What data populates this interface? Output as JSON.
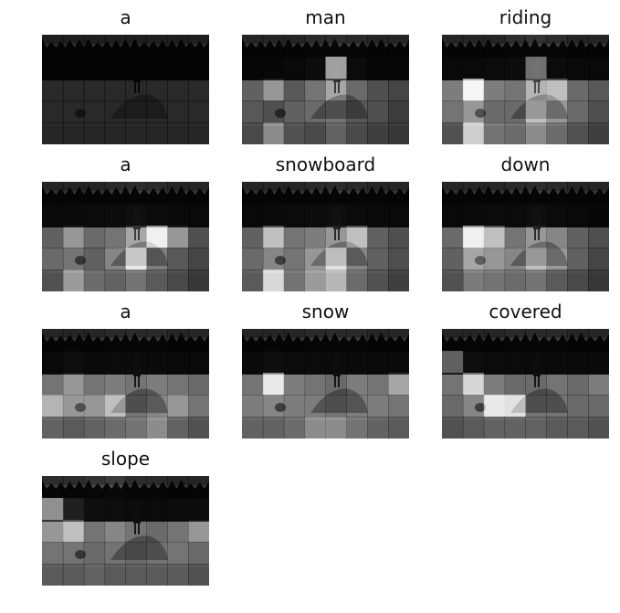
{
  "panels": [
    {
      "word": "a",
      "attention": [
        [
          0,
          0,
          0,
          0,
          0,
          0,
          0,
          0
        ],
        [
          0,
          0,
          0,
          0,
          0,
          0,
          0,
          0
        ],
        [
          0,
          0,
          0,
          0,
          0,
          0,
          0,
          0
        ],
        [
          0,
          0,
          0,
          0,
          0,
          0,
          0,
          0
        ],
        [
          0,
          0,
          0,
          0,
          0,
          0,
          0,
          0
        ]
      ]
    },
    {
      "word": "man",
      "attention": [
        [
          0.05,
          0.05,
          0.05,
          0.08,
          0.1,
          0.08,
          0.05,
          0.05
        ],
        [
          0.1,
          0.15,
          0.2,
          0.35,
          0.95,
          0.3,
          0.15,
          0.1
        ],
        [
          0.3,
          0.55,
          0.25,
          0.4,
          0.6,
          0.35,
          0.2,
          0.15
        ],
        [
          0.25,
          0.2,
          0.3,
          0.35,
          0.4,
          0.25,
          0.2,
          0.1
        ],
        [
          0.2,
          0.55,
          0.25,
          0.2,
          0.35,
          0.2,
          0.15,
          0.1
        ]
      ]
    },
    {
      "word": "riding",
      "attention": [
        [
          0.05,
          0.05,
          0.05,
          0.1,
          0.15,
          0.1,
          0.05,
          0.05
        ],
        [
          0.2,
          0.2,
          0.3,
          0.35,
          0.8,
          0.3,
          0.25,
          0.2
        ],
        [
          0.45,
          1.0,
          0.45,
          0.4,
          0.65,
          0.7,
          0.35,
          0.25
        ],
        [
          0.4,
          0.55,
          0.35,
          0.35,
          0.7,
          0.55,
          0.35,
          0.2
        ],
        [
          0.25,
          0.8,
          0.45,
          0.4,
          0.55,
          0.4,
          0.25,
          0.15
        ]
      ]
    },
    {
      "word": "a",
      "attention": [
        [
          0.05,
          0.05,
          0.05,
          0.08,
          0.1,
          0.08,
          0.05,
          0.05
        ],
        [
          0.25,
          0.25,
          0.3,
          0.35,
          0.5,
          0.35,
          0.25,
          0.2
        ],
        [
          0.3,
          0.55,
          0.35,
          0.4,
          0.6,
          0.95,
          0.55,
          0.2
        ],
        [
          0.35,
          0.4,
          0.3,
          0.5,
          0.9,
          0.45,
          0.25,
          0.15
        ],
        [
          0.25,
          0.6,
          0.4,
          0.35,
          0.45,
          0.3,
          0.2,
          0.1
        ]
      ]
    },
    {
      "word": "snowboard",
      "attention": [
        [
          0.05,
          0.05,
          0.05,
          0.08,
          0.1,
          0.08,
          0.05,
          0.05
        ],
        [
          0.2,
          0.25,
          0.3,
          0.35,
          0.45,
          0.3,
          0.25,
          0.2
        ],
        [
          0.3,
          0.7,
          0.4,
          0.45,
          0.55,
          0.7,
          0.3,
          0.2
        ],
        [
          0.35,
          0.5,
          0.4,
          0.55,
          0.85,
          0.5,
          0.3,
          0.2
        ],
        [
          0.3,
          0.85,
          0.45,
          0.6,
          0.7,
          0.4,
          0.25,
          0.15
        ]
      ]
    },
    {
      "word": "down",
      "attention": [
        [
          0.05,
          0.05,
          0.05,
          0.08,
          0.1,
          0.08,
          0.05,
          0.05
        ],
        [
          0.2,
          0.25,
          0.3,
          0.3,
          0.45,
          0.3,
          0.2,
          0.15
        ],
        [
          0.35,
          0.95,
          0.7,
          0.4,
          0.55,
          0.5,
          0.3,
          0.2
        ],
        [
          0.3,
          0.6,
          0.55,
          0.5,
          0.7,
          0.55,
          0.3,
          0.15
        ],
        [
          0.25,
          0.5,
          0.45,
          0.4,
          0.45,
          0.3,
          0.2,
          0.1
        ]
      ]
    },
    {
      "word": "a",
      "attention": [
        [
          0.05,
          0.05,
          0.05,
          0.08,
          0.08,
          0.08,
          0.05,
          0.05
        ],
        [
          0.2,
          0.45,
          0.25,
          0.3,
          0.3,
          0.25,
          0.25,
          0.2
        ],
        [
          0.4,
          0.55,
          0.4,
          0.45,
          0.4,
          0.45,
          0.4,
          0.35
        ],
        [
          0.65,
          0.55,
          0.55,
          0.7,
          0.4,
          0.5,
          0.55,
          0.4
        ],
        [
          0.35,
          0.3,
          0.35,
          0.4,
          0.45,
          0.55,
          0.35,
          0.25
        ]
      ]
    },
    {
      "word": "snow",
      "attention": [
        [
          0.05,
          0.05,
          0.05,
          0.08,
          0.08,
          0.08,
          0.05,
          0.05
        ],
        [
          0.25,
          0.45,
          0.3,
          0.3,
          0.3,
          0.25,
          0.25,
          0.25
        ],
        [
          0.4,
          0.9,
          0.45,
          0.4,
          0.35,
          0.45,
          0.4,
          0.6
        ],
        [
          0.45,
          0.5,
          0.45,
          0.45,
          0.4,
          0.45,
          0.45,
          0.4
        ],
        [
          0.35,
          0.35,
          0.4,
          0.55,
          0.55,
          0.45,
          0.35,
          0.3
        ]
      ]
    },
    {
      "word": "covered",
      "attention": [
        [
          0.05,
          0.05,
          0.05,
          0.08,
          0.08,
          0.08,
          0.05,
          0.05
        ],
        [
          0.75,
          0.4,
          0.3,
          0.3,
          0.25,
          0.25,
          0.25,
          0.25
        ],
        [
          0.4,
          0.8,
          0.45,
          0.35,
          0.35,
          0.4,
          0.35,
          0.45
        ],
        [
          0.35,
          0.5,
          0.9,
          0.85,
          0.4,
          0.4,
          0.35,
          0.35
        ],
        [
          0.25,
          0.3,
          0.35,
          0.35,
          0.35,
          0.3,
          0.3,
          0.25
        ]
      ]
    },
    {
      "word": "slope",
      "attention": [
        [
          0.1,
          0.1,
          0.15,
          0.2,
          0.1,
          0.08,
          0.05,
          0.05
        ],
        [
          0.9,
          0.55,
          0.45,
          0.4,
          0.3,
          0.3,
          0.35,
          0.35
        ],
        [
          0.55,
          0.7,
          0.4,
          0.5,
          0.4,
          0.35,
          0.4,
          0.55
        ],
        [
          0.4,
          0.4,
          0.35,
          0.4,
          0.35,
          0.4,
          0.4,
          0.35
        ],
        [
          0.3,
          0.3,
          0.35,
          0.3,
          0.3,
          0.3,
          0.3,
          0.25
        ]
      ]
    }
  ]
}
